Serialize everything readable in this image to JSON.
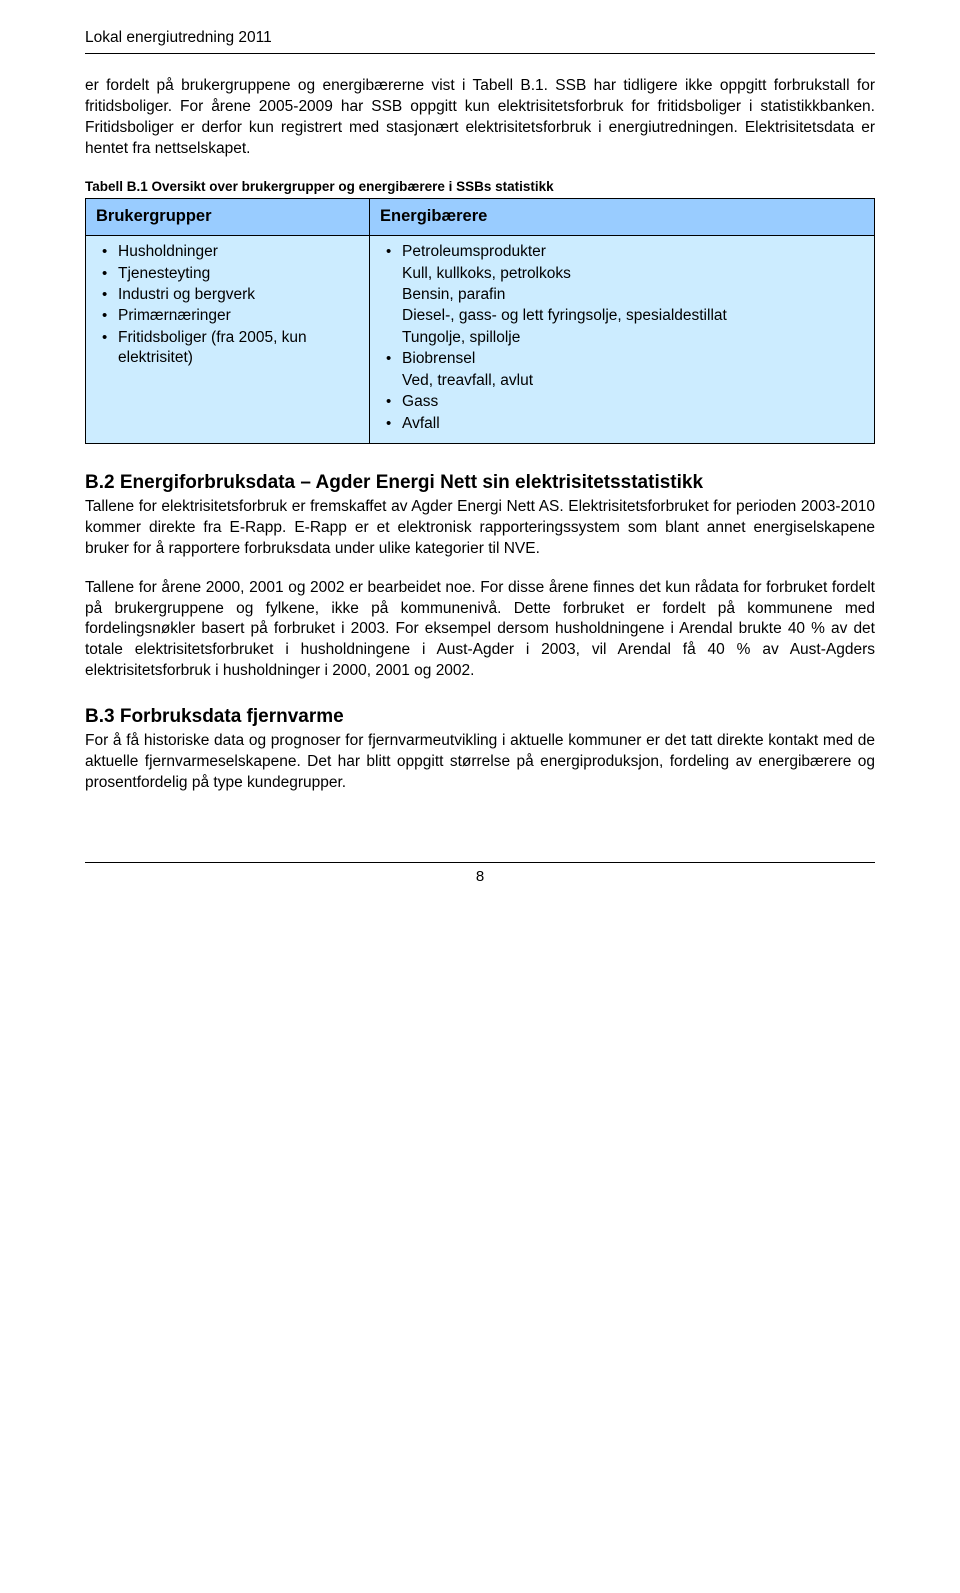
{
  "header": {
    "title": "Lokal energiutredning 2011"
  },
  "intro": {
    "text": "er fordelt på brukergruppene og energibærerne vist i Tabell B.1. SSB har tidligere ikke oppgitt forbrukstall for fritidsboliger. For årene 2005-2009 har SSB oppgitt kun elektrisitetsforbruk for fritidsboliger i statistikkbanken. Fritidsboliger er derfor kun registrert med stasjonært elektrisitetsforbruk i energiutredningen. Elektrisitetsdata er hentet fra nettselskapet."
  },
  "table": {
    "caption": "Tabell B.1 Oversikt over brukergrupper og energibærere i SSBs statistikk",
    "header_bg": "#99ccff",
    "body_bg": "#ccecff",
    "col1_header": "Brukergrupper",
    "col2_header": "Energibærere",
    "brukergrupper": [
      {
        "text": "Husholdninger",
        "bullet": true
      },
      {
        "text": "Tjenesteyting",
        "bullet": true
      },
      {
        "text": "Industri og bergverk",
        "bullet": true
      },
      {
        "text": "Primærnæringer",
        "bullet": true
      },
      {
        "text": "Fritidsboliger (fra 2005, kun elektrisitet)",
        "bullet": true
      }
    ],
    "energibaerere": [
      {
        "text": "Petroleumsprodukter",
        "bullet": true
      },
      {
        "text": "Kull, kullkoks, petrolkoks",
        "bullet": false
      },
      {
        "text": "Bensin, parafin",
        "bullet": false
      },
      {
        "text": "Diesel-, gass- og lett fyringsolje, spesialdestillat",
        "bullet": false
      },
      {
        "text": "Tungolje, spillolje",
        "bullet": false
      },
      {
        "text": "Biobrensel",
        "bullet": true
      },
      {
        "text": "Ved, treavfall, avlut",
        "bullet": false
      },
      {
        "text": "Gass",
        "bullet": true
      },
      {
        "text": "Avfall",
        "bullet": true
      }
    ]
  },
  "section_b2": {
    "title": "B.2 Energiforbruksdata – Agder Energi Nett sin elektrisitetsstatistikk",
    "p1": "Tallene for elektrisitetsforbruk er fremskaffet av Agder Energi Nett AS. Elektrisitetsforbruket for perioden 2003-2010 kommer direkte fra E-Rapp. E-Rapp er et elektronisk rapporteringssystem som blant annet energiselskapene bruker for å rapportere forbruksdata under ulike kategorier til NVE.",
    "p2": "Tallene for årene 2000, 2001 og 2002 er bearbeidet noe. For disse årene finnes det kun rådata for forbruket fordelt på brukergruppene og fylkene, ikke på kommunenivå. Dette forbruket er fordelt på kommunene med fordelingsnøkler basert på forbruket i 2003. For eksempel dersom husholdningene i Arendal brukte 40 % av det totale elektrisitetsforbruket i husholdningene i Aust-Agder i 2003, vil Arendal få 40 % av Aust-Agders elektrisitetsforbruk i husholdninger i 2000, 2001 og 2002."
  },
  "section_b3": {
    "title": "B.3 Forbruksdata fjernvarme",
    "p1": "For å få historiske data og prognoser for fjernvarmeutvikling i aktuelle kommuner er det tatt direkte kontakt med de aktuelle fjernvarmeselskapene. Det har blitt oppgitt størrelse på energiproduksjon, fordeling av energibærere og prosentfordelig på type kundegrupper."
  },
  "footer": {
    "page_number": "8"
  }
}
